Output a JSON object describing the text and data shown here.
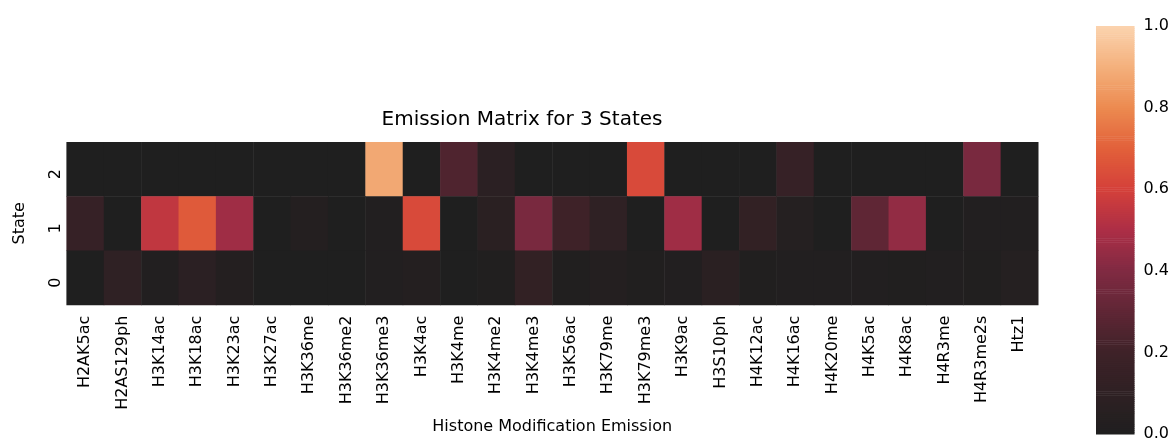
{
  "chart_data": {
    "type": "heatmap",
    "title": "Emission Matrix for 3 States",
    "xlabel": "Histone Modification Emission",
    "ylabel": "State",
    "categories": [
      "H2AK5ac",
      "H2AS129ph",
      "H3K14ac",
      "H3K18ac",
      "H3K23ac",
      "H3K27ac",
      "H3K36me",
      "H3K36me2",
      "H3K36me3",
      "H3K4ac",
      "H3K4me",
      "H3K4me2",
      "H3K4me3",
      "H3K56ac",
      "H3K79me",
      "H3K79me3",
      "H3K9ac",
      "H3S10ph",
      "H4K12ac",
      "H4K16ac",
      "H4K20me",
      "H4K5ac",
      "H4K8ac",
      "H4R3me",
      "H4R3me2s",
      "Htz1"
    ],
    "y_categories": [
      "2",
      "1",
      "0"
    ],
    "cells": [
      [
        0,
        0,
        0,
        0,
        0,
        0,
        0,
        0,
        0.88,
        0,
        0.25,
        0.08,
        0,
        0,
        0,
        0.63,
        0,
        0,
        0,
        0.15,
        0,
        0,
        0,
        0,
        0.38,
        0
      ],
      [
        0.15,
        0,
        0.55,
        0.68,
        0.47,
        0,
        0.03,
        0,
        0.02,
        0.63,
        0,
        0.07,
        0.38,
        0.2,
        0.1,
        0,
        0.47,
        0,
        0.12,
        0.04,
        0,
        0.3,
        0.44,
        0,
        0.02,
        0.02
      ],
      [
        0,
        0.1,
        0.02,
        0.08,
        0.03,
        0,
        0,
        0,
        0.02,
        0.03,
        0,
        0.01,
        0.12,
        0.01,
        0.03,
        0.01,
        0.02,
        0.07,
        0.01,
        0.02,
        0.02,
        0.02,
        0.01,
        0.02,
        0.01,
        0.04
      ]
    ],
    "clim": [
      0,
      1
    ],
    "cticks": [
      {
        "value": 0,
        "label": "0.0"
      },
      {
        "value": 0.2,
        "label": "0.2"
      },
      {
        "value": 0.4,
        "label": "0.4"
      },
      {
        "value": 0.6,
        "label": "0.6"
      },
      {
        "value": 0.8,
        "label": "0.8"
      },
      {
        "value": 1,
        "label": "1.0"
      }
    ]
  }
}
